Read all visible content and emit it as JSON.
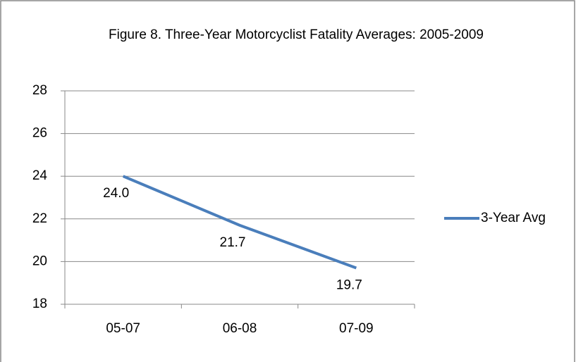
{
  "chart_data": {
    "type": "line",
    "title": "Figure 8.  Three-Year  Motorcyclist Fatality Averages: 2005-2009",
    "categories": [
      "05-07",
      "06-08",
      "07-09"
    ],
    "series": [
      {
        "name": "3-Year Avg",
        "color": "#4a7ebb",
        "values": [
          24,
          21.7,
          19.7
        ],
        "value_labels": [
          "24.0",
          "21.7",
          "19.7"
        ]
      }
    ],
    "ylim": [
      18,
      28
    ],
    "yticks": [
      18,
      20,
      22,
      24,
      26,
      28
    ],
    "grid": true,
    "legend": "right"
  }
}
